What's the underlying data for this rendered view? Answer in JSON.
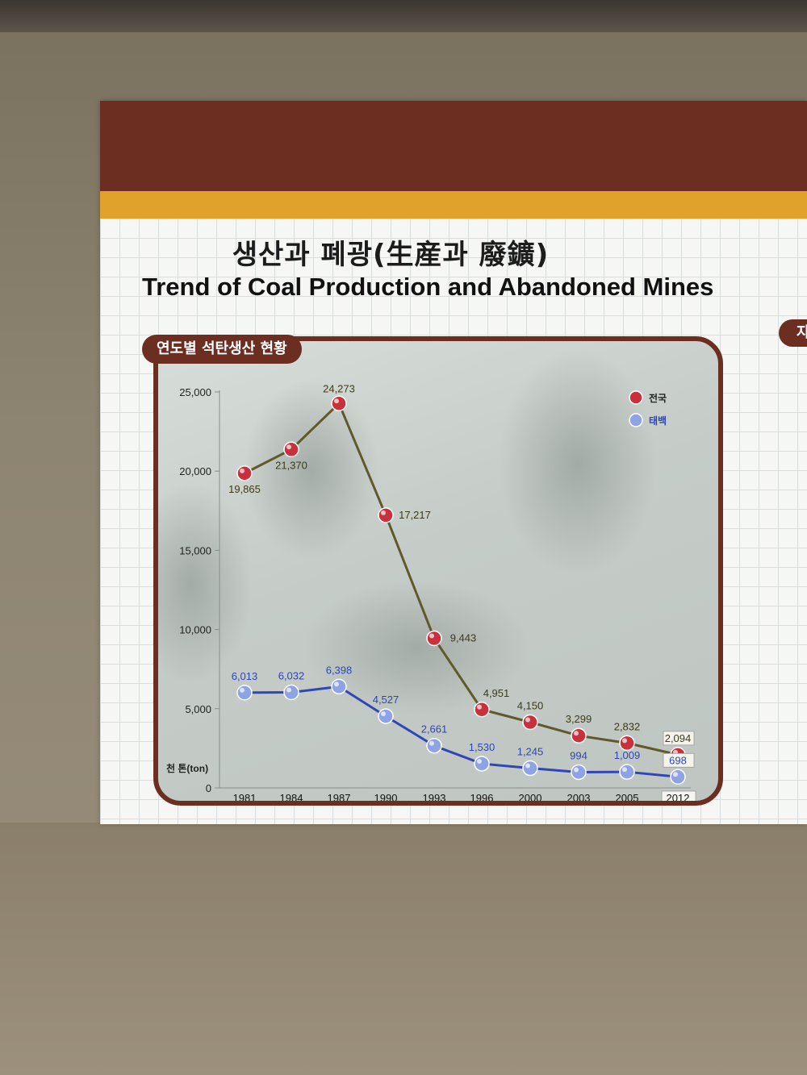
{
  "poster": {
    "title_ko": "생산과 폐광(生産과 廢鑛)",
    "title_en": "Trend of Coal Production and Abandoned Mines",
    "chart_tab": "연도별 석탄생산 현황",
    "side_tab": "자"
  },
  "colors": {
    "brown": "#6d2e22",
    "gold": "#e0a22a",
    "national_line": "#5e5a2a",
    "national_marker": "#c8313b",
    "taebaek_line": "#2f45b8",
    "taebaek_marker": "#8ea2e6"
  },
  "chart_data": {
    "type": "line",
    "title": "연도별 석탄생산 현황",
    "x": [
      "1981",
      "1984",
      "1987",
      "1990",
      "1993",
      "1996",
      "2000",
      "2003",
      "2005",
      "2012"
    ],
    "ylabel": "천 톤(ton)",
    "ylim": [
      0,
      25000
    ],
    "yticks": [
      "0",
      "5,000",
      "10,000",
      "15,000",
      "20,000",
      "25,000"
    ],
    "legend_position": "top-right",
    "grid": false,
    "series": [
      {
        "name": "전국",
        "values": [
          19865,
          21370,
          24273,
          17217,
          9443,
          4951,
          4150,
          3299,
          2832,
          2094
        ],
        "labels": [
          "19,865",
          "21,370",
          "24,273",
          "17,217",
          "9,443",
          "4,951",
          "4,150",
          "3,299",
          "2,832",
          "2,094"
        ]
      },
      {
        "name": "태백",
        "values": [
          6013,
          6032,
          6398,
          4527,
          2661,
          1530,
          1245,
          994,
          1009,
          698
        ],
        "labels": [
          "6,013",
          "6,032",
          "6,398",
          "4,527",
          "2,661",
          "1,530",
          "1,245",
          "994",
          "1,009",
          "698"
        ]
      }
    ]
  }
}
